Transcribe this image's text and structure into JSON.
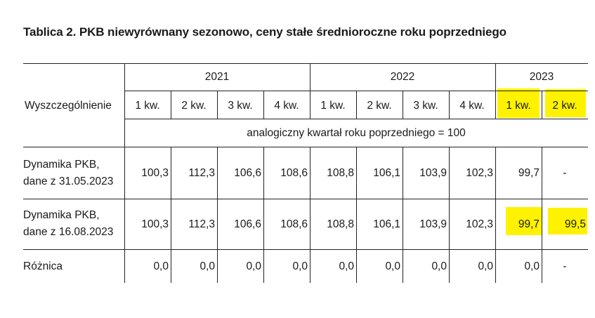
{
  "title": "Tablica 2. PKB niewyrównany sezonowo, ceny stałe średnioroczne roku poprzedniego",
  "table": {
    "row_header": "Wyszczególnienie",
    "years": [
      "2021",
      "2022",
      "2023"
    ],
    "quarters": [
      "1 kw.",
      "2 kw.",
      "3 kw.",
      "4 kw.",
      "1 kw.",
      "2 kw.",
      "3 kw.",
      "4 kw.",
      "1 kw.",
      "2 kw."
    ],
    "base_note": "analogiczny kwartał roku poprzedniego = 100",
    "rows": [
      {
        "label_line1": "Dynamika PKB,",
        "label_line2": "dane z 31.05.2023",
        "values": [
          "100,3",
          "112,3",
          "106,6",
          "108,6",
          "108,8",
          "106,1",
          "103,9",
          "102,3",
          "99,7",
          "-"
        ]
      },
      {
        "label_line1": "Dynamika PKB,",
        "label_line2": "dane z 16.08.2023",
        "values": [
          "100,3",
          "112,3",
          "106,6",
          "108,6",
          "108,8",
          "106,1",
          "103,9",
          "102,3",
          "99,7",
          "99,5"
        ]
      },
      {
        "label_line1": "Różnica",
        "label_line2": "",
        "values": [
          "0,0",
          "0,0",
          "0,0",
          "0,0",
          "0,0",
          "0,0",
          "0,0",
          "0,0",
          "0,0",
          "-"
        ]
      }
    ],
    "highlight_color": "#fff200"
  }
}
